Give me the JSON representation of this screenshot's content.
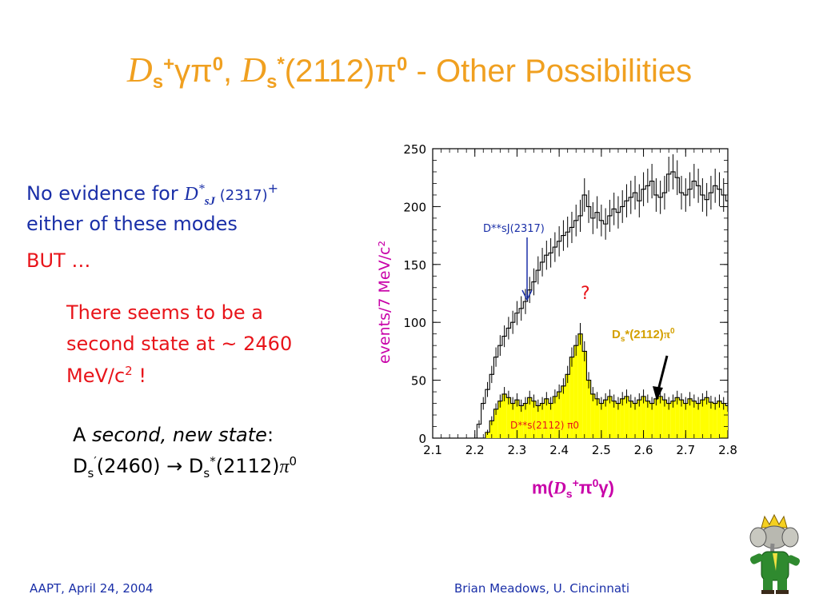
{
  "title": {
    "d1": "D",
    "s1": "s",
    "plus": "+",
    "gp": "γπ",
    "zero1": "0",
    "comma": ",",
    "d2": "D",
    "s2": "s",
    "star": "*",
    "mass": "(2112)",
    "pi": "π",
    "zero2": "0",
    "rest": " - Other Possibilities"
  },
  "body": {
    "line1_pre": "No evidence for ",
    "line1_D": "D",
    "line1_star": "*",
    "line1_sJ": "sJ",
    "line1_mass": " (2317)",
    "line1_plus": "+",
    "line2": "either of these modes",
    "but": "BUT …",
    "seems1": "There seems to be a",
    "seems2": "second state at ~ 2460",
    "seems3": "MeV/c",
    "seems3_sup": "2",
    "seems3_end": " !",
    "a_prefix": "A ",
    "a_italic": "second, new state",
    "a_colon": ":",
    "decay_D1": "D",
    "decay_s1": "s",
    "decay_prime": "′",
    "decay_mass1": "(2460) ",
    "decay_arrow": "→",
    "decay_D2": " D",
    "decay_s2": "s",
    "decay_star": "*",
    "decay_mass2": "(2112)",
    "decay_pi": "π",
    "decay_zero": "0"
  },
  "chart_data": {
    "type": "bar",
    "ylabel": "events/7 MeV/c²",
    "xlabel": "m(Ds+π0γ)",
    "xlim": [
      2.1,
      2.8
    ],
    "ylim": [
      0,
      250
    ],
    "xticks": [
      "2.1",
      "2.2",
      "2.3",
      "2.4",
      "2.5",
      "2.6",
      "2.7",
      "2.8"
    ],
    "yticks": [
      "0",
      "50",
      "100",
      "150",
      "200",
      "250"
    ],
    "series": [
      {
        "name": "D*sJ(2317)",
        "x": [
          2.2,
          2.21,
          2.22,
          2.23,
          2.24,
          2.25,
          2.26,
          2.27,
          2.28,
          2.29,
          2.3,
          2.31,
          2.32,
          2.33,
          2.34,
          2.35,
          2.36,
          2.37,
          2.38,
          2.39,
          2.4,
          2.41,
          2.42,
          2.43,
          2.44,
          2.45,
          2.46,
          2.47,
          2.48,
          2.49,
          2.5,
          2.51,
          2.52,
          2.53,
          2.54,
          2.55,
          2.56,
          2.57,
          2.58,
          2.59,
          2.6,
          2.61,
          2.62,
          2.63,
          2.64,
          2.65,
          2.66,
          2.67,
          2.68,
          2.69,
          2.7,
          2.71,
          2.72,
          2.73,
          2.74,
          2.75,
          2.76,
          2.77,
          2.78,
          2.79,
          2.8
        ],
        "values": [
          0,
          12,
          30,
          42,
          55,
          70,
          80,
          88,
          95,
          100,
          108,
          112,
          118,
          128,
          135,
          145,
          152,
          158,
          160,
          165,
          170,
          175,
          178,
          182,
          188,
          192,
          210,
          200,
          190,
          195,
          188,
          185,
          192,
          198,
          195,
          200,
          205,
          208,
          212,
          205,
          215,
          218,
          222,
          210,
          208,
          212,
          228,
          230,
          225,
          212,
          210,
          215,
          222,
          218,
          210,
          206,
          212,
          218,
          215,
          210,
          205
        ]
      },
      {
        "name": "Ds*(2112)π0",
        "x": [
          2.2,
          2.21,
          2.22,
          2.23,
          2.24,
          2.25,
          2.26,
          2.27,
          2.28,
          2.29,
          2.3,
          2.31,
          2.32,
          2.33,
          2.34,
          2.35,
          2.36,
          2.37,
          2.38,
          2.39,
          2.4,
          2.41,
          2.42,
          2.43,
          2.44,
          2.45,
          2.46,
          2.47,
          2.48,
          2.49,
          2.5,
          2.51,
          2.52,
          2.53,
          2.54,
          2.55,
          2.56,
          2.57,
          2.58,
          2.59,
          2.6,
          2.61,
          2.62,
          2.63,
          2.64,
          2.65,
          2.66,
          2.67,
          2.68,
          2.69,
          2.7,
          2.71,
          2.72,
          2.73,
          2.74,
          2.75,
          2.76,
          2.77,
          2.78,
          2.79,
          2.8
        ],
        "values": [
          0,
          0,
          0,
          5,
          15,
          25,
          32,
          38,
          35,
          30,
          33,
          28,
          30,
          35,
          32,
          28,
          30,
          34,
          30,
          36,
          40,
          45,
          55,
          70,
          80,
          90,
          75,
          50,
          38,
          34,
          30,
          33,
          36,
          32,
          30,
          34,
          36,
          32,
          30,
          33,
          36,
          32,
          30,
          34,
          36,
          33,
          30,
          32,
          35,
          33,
          30,
          34,
          32,
          30,
          33,
          35,
          31,
          30,
          32,
          30,
          28
        ]
      }
    ],
    "annotations": {
      "dsj": "D**sJ(2317)",
      "question": "?",
      "ds_label_D": "D",
      "ds_label_s": "s",
      "ds_label_rest": "*(2112)",
      "ds_label_pi": "π",
      "ds_label_zero": "0",
      "inner": "D**s(2112) π0"
    },
    "colors": {
      "fill": "#ffff00",
      "stroke": "#000000",
      "blue": "#1a2fa8",
      "red": "#e8141a",
      "gold": "#d4a000",
      "magenta": "#c800a8"
    }
  },
  "xlabel_parts": {
    "m": "m(",
    "D": "D",
    "s": "s",
    "plus": "+",
    "pi": "π",
    "zero": "0",
    "g": "γ",
    "close": ")"
  },
  "footer": {
    "left": "AAPT, April 24, 2004",
    "right": "Brian Meadows, U. Cincinnati"
  },
  "logo": {
    "icon": "elephant-king-icon"
  }
}
